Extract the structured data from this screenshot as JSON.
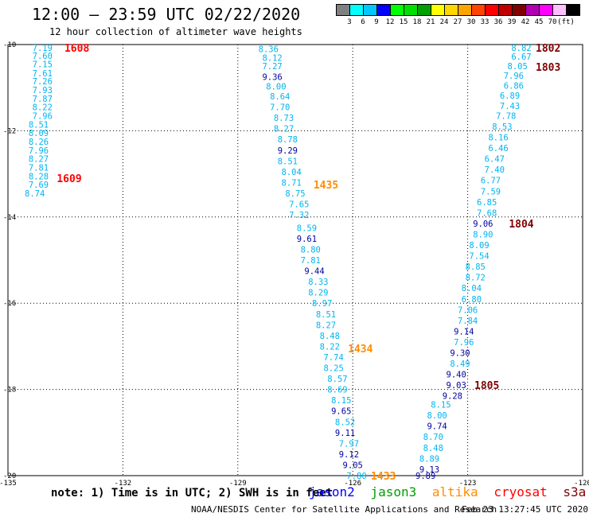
{
  "title": "12:00 – 23:59 UTC 02/22/2020",
  "subtitle": "12 hour collection of altimeter wave heights",
  "note": "note: 1) Time is in UTC; 2) SWH is in feet",
  "footer_center": "NOAA/NESDIS Center for Satellite Applications and Research",
  "footer_time": "Feb 23 13:27:45 UTC 2020",
  "satellites": [
    {
      "name": "jason2",
      "color": "#0000ff"
    },
    {
      "name": "jason3",
      "color": "#00a000"
    },
    {
      "name": "altika",
      "color": "#ff8c00"
    },
    {
      "name": "cryosat",
      "color": "#ff0000"
    },
    {
      "name": "s3a",
      "color": "#800000"
    }
  ],
  "colorbar": {
    "colors": [
      "#808080",
      "#00ffff",
      "#00c8ff",
      "#0000ff",
      "#00ff00",
      "#00e000",
      "#00a000",
      "#ffff00",
      "#ffd700",
      "#ffa500",
      "#ff4500",
      "#ff0000",
      "#c00000",
      "#800000",
      "#b000b0",
      "#ff00ff",
      "#ffc0ff",
      "#000000"
    ],
    "labels": [
      "3",
      "6",
      "9",
      "12",
      "15",
      "18",
      "21",
      "24",
      "27",
      "30",
      "33",
      "36",
      "39",
      "42",
      "45",
      "70",
      "(ft)"
    ]
  },
  "chart_data": {
    "type": "scatter",
    "title": "12:00 – 23:59 UTC 02/22/2020",
    "xlim": [
      -135,
      -120
    ],
    "ylim": [
      -10,
      -20
    ],
    "x_ticks": [
      "-135",
      "-132",
      "-129",
      "-126",
      "-123",
      "-120"
    ],
    "y_ticks": [
      "-10",
      "-12",
      "-14",
      "-16",
      "-18",
      "-20"
    ],
    "grid": true,
    "tracks": [
      {
        "id": "west",
        "points": [
          {
            "x": -134.1,
            "y": -10.07,
            "v": "7.19",
            "c": "#00b4f0"
          },
          {
            "x": -134.1,
            "y": -10.26,
            "v": "7.60",
            "c": "#00b4f0"
          },
          {
            "x": -134.1,
            "y": -10.45,
            "v": "7.15",
            "c": "#00b4f0"
          },
          {
            "x": -134.1,
            "y": -10.66,
            "v": "7.61",
            "c": "#00b4f0"
          },
          {
            "x": -134.1,
            "y": -10.85,
            "v": "7.26",
            "c": "#00b4f0"
          },
          {
            "x": -134.1,
            "y": -11.05,
            "v": "7.93",
            "c": "#00b4f0"
          },
          {
            "x": -134.1,
            "y": -11.25,
            "v": "7.87",
            "c": "#00b4f0"
          },
          {
            "x": -134.1,
            "y": -11.45,
            "v": "8.22",
            "c": "#00b4f0"
          },
          {
            "x": -134.1,
            "y": -11.65,
            "v": "7.96",
            "c": "#00b4f0"
          },
          {
            "x": -134.2,
            "y": -11.85,
            "v": "8.51",
            "c": "#00b4f0"
          },
          {
            "x": -134.2,
            "y": -12.05,
            "v": "8.09",
            "c": "#00b4f0"
          },
          {
            "x": -134.2,
            "y": -12.25,
            "v": "8.26",
            "c": "#00b4f0"
          },
          {
            "x": -134.2,
            "y": -12.45,
            "v": "7.96",
            "c": "#00b4f0"
          },
          {
            "x": -134.2,
            "y": -12.65,
            "v": "8.27",
            "c": "#00b4f0"
          },
          {
            "x": -134.2,
            "y": -12.85,
            "v": "7.81",
            "c": "#00b4f0"
          },
          {
            "x": -134.2,
            "y": -13.05,
            "v": "8.28",
            "c": "#00b4f0"
          },
          {
            "x": -134.2,
            "y": -13.25,
            "v": "7.69",
            "c": "#00b4f0"
          },
          {
            "x": -134.3,
            "y": -13.45,
            "v": "8.74",
            "c": "#00b4f0"
          }
        ]
      },
      {
        "id": "middle",
        "points": [
          {
            "x": -128.2,
            "y": -10.1,
            "v": "8.36",
            "c": "#00b4f0"
          },
          {
            "x": -128.1,
            "y": -10.3,
            "v": "8.12",
            "c": "#00b4f0"
          },
          {
            "x": -128.1,
            "y": -10.5,
            "v": "7.27",
            "c": "#00b4f0"
          },
          {
            "x": -128.1,
            "y": -10.75,
            "v": "9.36",
            "c": "#0000a0"
          },
          {
            "x": -128.0,
            "y": -10.97,
            "v": "8.00",
            "c": "#00b4f0"
          },
          {
            "x": -127.9,
            "y": -11.2,
            "v": "8.64",
            "c": "#00b4f0"
          },
          {
            "x": -127.9,
            "y": -11.45,
            "v": "7.70",
            "c": "#00b4f0"
          },
          {
            "x": -127.8,
            "y": -11.7,
            "v": "8.73",
            "c": "#00b4f0"
          },
          {
            "x": -127.8,
            "y": -11.95,
            "v": "8.27",
            "c": "#00b4f0"
          },
          {
            "x": -127.7,
            "y": -12.2,
            "v": "8.78",
            "c": "#00b4f0"
          },
          {
            "x": -127.7,
            "y": -12.45,
            "v": "9.29",
            "c": "#0000a0"
          },
          {
            "x": -127.7,
            "y": -12.7,
            "v": "8.51",
            "c": "#00b4f0"
          },
          {
            "x": -127.6,
            "y": -12.95,
            "v": "8.04",
            "c": "#00b4f0"
          },
          {
            "x": -127.6,
            "y": -13.2,
            "v": "8.71",
            "c": "#00b4f0"
          },
          {
            "x": -127.5,
            "y": -13.45,
            "v": "8.75",
            "c": "#00b4f0"
          },
          {
            "x": -127.4,
            "y": -13.7,
            "v": "7.65",
            "c": "#00b4f0"
          },
          {
            "x": -127.4,
            "y": -13.95,
            "v": "7.32",
            "c": "#00b4f0"
          },
          {
            "x": -127.2,
            "y": -14.25,
            "v": "8.59",
            "c": "#00b4f0"
          },
          {
            "x": -127.2,
            "y": -14.5,
            "v": "9.61",
            "c": "#0000a0"
          },
          {
            "x": -127.1,
            "y": -14.75,
            "v": "8.80",
            "c": "#00b4f0"
          },
          {
            "x": -127.1,
            "y": -15.0,
            "v": "7.81",
            "c": "#00b4f0"
          },
          {
            "x": -127.0,
            "y": -15.25,
            "v": "9.44",
            "c": "#0000a0"
          },
          {
            "x": -126.9,
            "y": -15.5,
            "v": "8.33",
            "c": "#00b4f0"
          },
          {
            "x": -126.9,
            "y": -15.75,
            "v": "8.29",
            "c": "#00b4f0"
          },
          {
            "x": -126.8,
            "y": -16.0,
            "v": "8.97",
            "c": "#00b4f0"
          },
          {
            "x": -126.7,
            "y": -16.25,
            "v": "8.51",
            "c": "#00b4f0"
          },
          {
            "x": -126.7,
            "y": -16.5,
            "v": "8.27",
            "c": "#00b4f0"
          },
          {
            "x": -126.6,
            "y": -16.75,
            "v": "8.48",
            "c": "#00b4f0"
          },
          {
            "x": -126.6,
            "y": -17.0,
            "v": "8.22",
            "c": "#00b4f0"
          },
          {
            "x": -126.5,
            "y": -17.25,
            "v": "7.74",
            "c": "#00b4f0"
          },
          {
            "x": -126.5,
            "y": -17.5,
            "v": "8.25",
            "c": "#00b4f0"
          },
          {
            "x": -126.4,
            "y": -17.75,
            "v": "8.57",
            "c": "#00b4f0"
          },
          {
            "x": -126.4,
            "y": -18.0,
            "v": "8.69",
            "c": "#00b4f0"
          },
          {
            "x": -126.3,
            "y": -18.25,
            "v": "8.15",
            "c": "#00b4f0"
          },
          {
            "x": -126.3,
            "y": -18.5,
            "v": "9.65",
            "c": "#0000a0"
          },
          {
            "x": -126.2,
            "y": -18.75,
            "v": "8.52",
            "c": "#00b4f0"
          },
          {
            "x": -126.2,
            "y": -19.0,
            "v": "9.11",
            "c": "#0000a0"
          },
          {
            "x": -126.1,
            "y": -19.25,
            "v": "7.97",
            "c": "#00b4f0"
          },
          {
            "x": -126.1,
            "y": -19.5,
            "v": "9.12",
            "c": "#0000a0"
          },
          {
            "x": -126.0,
            "y": -19.75,
            "v": "9.05",
            "c": "#0000a0"
          },
          {
            "x": -125.9,
            "y": -20.0,
            "v": "7.80",
            "c": "#00b4f0"
          }
        ]
      },
      {
        "id": "east-up",
        "points": [
          {
            "x": -121.6,
            "y": -10.07,
            "v": "8.82",
            "c": "#00b4f0"
          },
          {
            "x": -121.6,
            "y": -10.28,
            "v": "6.67",
            "c": "#00b4f0"
          },
          {
            "x": -121.7,
            "y": -10.5,
            "v": "8.05",
            "c": "#00b4f0"
          },
          {
            "x": -121.8,
            "y": -10.72,
            "v": "7.96",
            "c": "#00b4f0"
          },
          {
            "x": -121.8,
            "y": -10.95,
            "v": "6.86",
            "c": "#00b4f0"
          },
          {
            "x": -121.9,
            "y": -11.18,
            "v": "6.89",
            "c": "#00b4f0"
          },
          {
            "x": -121.9,
            "y": -11.42,
            "v": "7.43",
            "c": "#00b4f0"
          },
          {
            "x": -122.0,
            "y": -11.65,
            "v": "7.78",
            "c": "#00b4f0"
          },
          {
            "x": -122.1,
            "y": -11.9,
            "v": "8.53",
            "c": "#00b4f0"
          },
          {
            "x": -122.2,
            "y": -12.15,
            "v": "8.16",
            "c": "#00b4f0"
          },
          {
            "x": -122.2,
            "y": -12.4,
            "v": "6.46",
            "c": "#00b4f0"
          },
          {
            "x": -122.3,
            "y": -12.65,
            "v": "6.47",
            "c": "#00b4f0"
          },
          {
            "x": -122.3,
            "y": -12.9,
            "v": "7.40",
            "c": "#00b4f0"
          },
          {
            "x": -122.4,
            "y": -13.15,
            "v": "6.77",
            "c": "#00b4f0"
          },
          {
            "x": -122.4,
            "y": -13.4,
            "v": "7.59",
            "c": "#00b4f0"
          },
          {
            "x": -122.5,
            "y": -13.65,
            "v": "6.85",
            "c": "#00b4f0"
          },
          {
            "x": -122.5,
            "y": -13.9,
            "v": "7.68",
            "c": "#00b4f0"
          },
          {
            "x": -122.6,
            "y": -14.15,
            "v": "9.06",
            "c": "#0000a0"
          },
          {
            "x": -122.6,
            "y": -14.4,
            "v": "8.90",
            "c": "#00b4f0"
          },
          {
            "x": -122.7,
            "y": -14.65,
            "v": "8.09",
            "c": "#00b4f0"
          },
          {
            "x": -122.7,
            "y": -14.9,
            "v": "7.54",
            "c": "#00b4f0"
          },
          {
            "x": -122.8,
            "y": -15.15,
            "v": "8.85",
            "c": "#00b4f0"
          },
          {
            "x": -122.8,
            "y": -15.4,
            "v": "8.72",
            "c": "#00b4f0"
          },
          {
            "x": -122.9,
            "y": -15.65,
            "v": "8.04",
            "c": "#00b4f0"
          },
          {
            "x": -122.9,
            "y": -15.9,
            "v": "6.80",
            "c": "#00b4f0"
          },
          {
            "x": -123.0,
            "y": -16.15,
            "v": "7.06",
            "c": "#00b4f0"
          },
          {
            "x": -123.0,
            "y": -16.4,
            "v": "7.84",
            "c": "#00b4f0"
          },
          {
            "x": -123.1,
            "y": -16.65,
            "v": "9.14",
            "c": "#0000a0"
          },
          {
            "x": -123.1,
            "y": -16.9,
            "v": "7.96",
            "c": "#00b4f0"
          },
          {
            "x": -123.2,
            "y": -17.15,
            "v": "9.30",
            "c": "#0000a0"
          },
          {
            "x": -123.2,
            "y": -17.4,
            "v": "8.49",
            "c": "#00b4f0"
          },
          {
            "x": -123.3,
            "y": -17.65,
            "v": "9.40",
            "c": "#0000a0"
          },
          {
            "x": -123.3,
            "y": -17.9,
            "v": "9.03",
            "c": "#0000a0"
          },
          {
            "x": -123.4,
            "y": -18.15,
            "v": "9.28",
            "c": "#0000a0"
          }
        ]
      },
      {
        "id": "east-low",
        "points": [
          {
            "x": -123.7,
            "y": -18.35,
            "v": "8.15",
            "c": "#00b4f0"
          },
          {
            "x": -123.8,
            "y": -18.6,
            "v": "8.00",
            "c": "#00b4f0"
          },
          {
            "x": -123.8,
            "y": -18.85,
            "v": "9.74",
            "c": "#0000a0"
          },
          {
            "x": -123.9,
            "y": -19.1,
            "v": "8.70",
            "c": "#00b4f0"
          },
          {
            "x": -123.9,
            "y": -19.35,
            "v": "8.48",
            "c": "#00b4f0"
          },
          {
            "x": -124.0,
            "y": -19.6,
            "v": "8.89",
            "c": "#00b4f0"
          },
          {
            "x": -124.0,
            "y": -19.85,
            "v": "9.13",
            "c": "#0000a0"
          },
          {
            "x": -124.1,
            "y": -20.0,
            "v": "9.89",
            "c": "#0000a0"
          }
        ]
      }
    ],
    "time_labels": [
      {
        "text": "1608",
        "x": -133.2,
        "y": -10.07,
        "c": "#ff0000"
      },
      {
        "text": "1609",
        "x": -133.4,
        "y": -13.1,
        "c": "#ff0000"
      },
      {
        "text": "1435",
        "x": -126.7,
        "y": -13.25,
        "c": "#ff8c00"
      },
      {
        "text": "1434",
        "x": -125.8,
        "y": -17.05,
        "c": "#ff8c00"
      },
      {
        "text": "1433",
        "x": -125.2,
        "y": -20.0,
        "c": "#ff8c00"
      },
      {
        "text": "1802",
        "x": -120.9,
        "y": -10.07,
        "c": "#800000"
      },
      {
        "text": "1803",
        "x": -120.9,
        "y": -10.52,
        "c": "#800000"
      },
      {
        "text": "1804",
        "x": -121.6,
        "y": -14.15,
        "c": "#800000"
      },
      {
        "text": "1805",
        "x": -122.5,
        "y": -17.9,
        "c": "#800000"
      }
    ]
  }
}
